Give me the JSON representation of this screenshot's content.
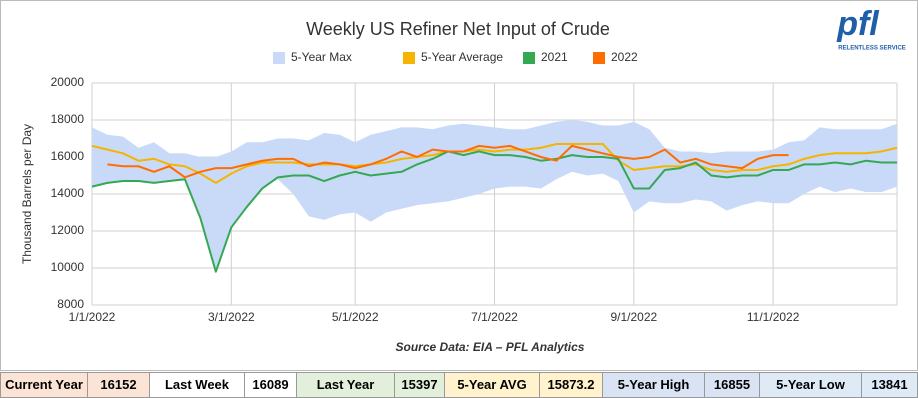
{
  "chart_data": {
    "type": "line",
    "title": "Weekly US Refiner Net Input of Crude",
    "y_label": "Thousand Barrels per Day",
    "source": "Source Data: EIA – PFL Analytics",
    "categories": [
      "1/1/2022",
      null,
      null,
      null,
      null,
      null,
      null,
      null,
      null,
      "3/1/2022",
      null,
      null,
      null,
      null,
      null,
      null,
      null,
      "5/1/2022",
      null,
      null,
      null,
      null,
      null,
      null,
      null,
      null,
      "7/1/2022",
      null,
      null,
      null,
      null,
      null,
      null,
      null,
      null,
      "9/1/2022",
      null,
      null,
      null,
      null,
      null,
      null,
      null,
      null,
      "11/1/2022",
      null,
      null,
      null,
      null,
      null,
      null,
      null,
      null
    ],
    "series": [
      {
        "name": "5-Year Max",
        "type": "band",
        "color": "#c9daf8",
        "values": [
          17600,
          17200,
          17100,
          16500,
          16800,
          16200,
          16200,
          16000,
          16000,
          16300,
          16800,
          16800,
          17000,
          17000,
          16900,
          17300,
          17200,
          16800,
          17200,
          17400,
          17600,
          17600,
          17500,
          17700,
          17800,
          17700,
          17600,
          17500,
          17500,
          17700,
          17900,
          18000,
          17900,
          17700,
          17700,
          17900,
          17500,
          16500,
          16300,
          16300,
          16200,
          16300,
          16300,
          16300,
          16400,
          16800,
          16900,
          17600,
          17500,
          17500,
          17500,
          17500,
          17800
        ],
        "lower": [
          14400,
          14600,
          14700,
          14700,
          14600,
          14700,
          14800,
          12700,
          9800,
          12200,
          13300,
          14300,
          14800,
          14000,
          12800,
          12600,
          12900,
          13000,
          12500,
          13000,
          13200,
          13400,
          13500,
          13600,
          13800,
          14000,
          14300,
          14400,
          14400,
          14300,
          14800,
          15200,
          15000,
          15100,
          14700,
          13000,
          13600,
          13500,
          13500,
          13700,
          13600,
          13100,
          13400,
          13600,
          13500,
          13500,
          14000,
          14400,
          14100,
          14300,
          14100,
          14100,
          14400
        ]
      },
      {
        "name": "5-Year Average",
        "color": "#f4b400",
        "values": [
          16600,
          16400,
          16200,
          15800,
          15900,
          15600,
          15500,
          15100,
          14600,
          15100,
          15500,
          15700,
          15700,
          15700,
          15600,
          15600,
          15600,
          15500,
          15600,
          15700,
          15900,
          16000,
          16100,
          16300,
          16300,
          16400,
          16300,
          16400,
          16400,
          16500,
          16700,
          16700,
          16700,
          16700,
          15800,
          15300,
          15400,
          15500,
          15500,
          15600,
          15300,
          15200,
          15300,
          15300,
          15500,
          15600,
          15900,
          16100,
          16200,
          16200,
          16200,
          16300,
          16500
        ]
      },
      {
        "name": "2021",
        "color": "#34a853",
        "values": [
          14400,
          14600,
          14700,
          14700,
          14600,
          14700,
          14800,
          12700,
          9800,
          12200,
          13300,
          14300,
          14900,
          15000,
          15000,
          14700,
          15000,
          15200,
          15000,
          15100,
          15200,
          15600,
          15900,
          16300,
          16100,
          16300,
          16100,
          16100,
          16000,
          15800,
          15900,
          16100,
          16000,
          16000,
          15900,
          14300,
          14300,
          15300,
          15400,
          15700,
          15000,
          14900,
          15000,
          15000,
          15300,
          15300,
          15600,
          15600,
          15700,
          15600,
          15800,
          15700,
          15700
        ]
      },
      {
        "name": "2022",
        "color": "#ff6d01",
        "values": [
          null,
          15600,
          15500,
          15500,
          15200,
          15500,
          14900,
          15200,
          15400,
          15400,
          15600,
          15800,
          15900,
          15900,
          15500,
          15700,
          15600,
          15400,
          15600,
          15900,
          16300,
          16000,
          16400,
          16300,
          16300,
          16600,
          16500,
          16600,
          16300,
          16000,
          15800,
          16600,
          16400,
          16200,
          16000,
          15900,
          16000,
          16400,
          15700,
          15900,
          15600,
          15500,
          15400,
          15900,
          16100,
          16100,
          null,
          null,
          null,
          null,
          null,
          null,
          null
        ]
      }
    ],
    "ylim": [
      8000,
      20000
    ],
    "yticks": [
      8000,
      10000,
      12000,
      14000,
      16000,
      18000,
      20000
    ],
    "grid": true,
    "legend": "top"
  },
  "logo": {
    "text": "pfl",
    "tagline": "RELENTLESS SERVICE"
  },
  "summary": [
    {
      "label": "Current Year",
      "value": 16152
    },
    {
      "label": "Last Week",
      "value": 16089
    },
    {
      "label": "Last Year",
      "value": 15397
    },
    {
      "label": "5-Year AVG",
      "value": 15873.2
    },
    {
      "label": "5-Year High",
      "value": 16855
    },
    {
      "label": "5-Year Low",
      "value": 13841
    }
  ]
}
